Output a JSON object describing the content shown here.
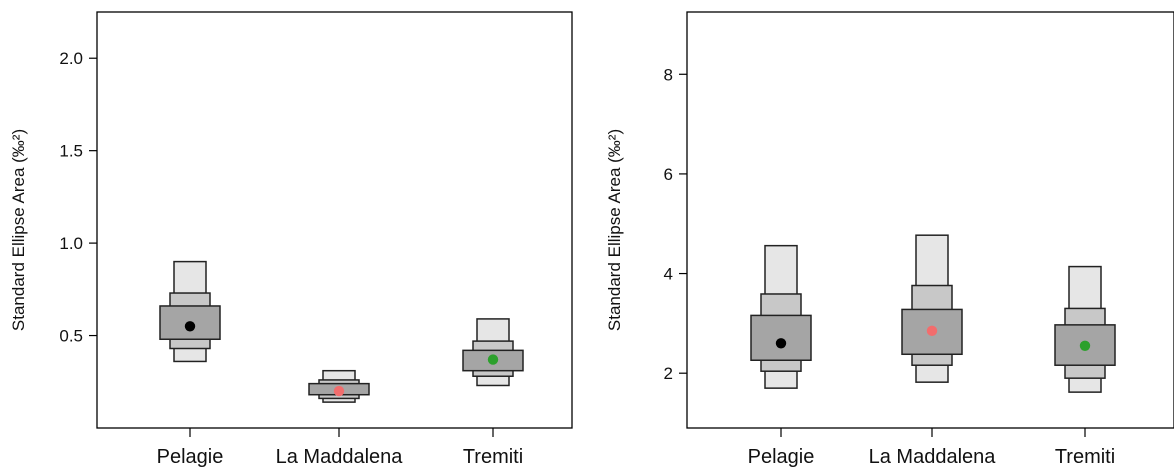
{
  "chart_data": [
    {
      "type": "box",
      "ylabel": "Standard Ellipse Area (‰²)",
      "categories": [
        "Pelagie",
        "La Maddalena",
        "Tremiti"
      ],
      "ylim": [
        0.0,
        2.25
      ],
      "yticks": [
        "0.5",
        "1.0",
        "1.5",
        "2.0"
      ],
      "series": [
        {
          "mode": 0.55,
          "ci50": [
            0.48,
            0.66
          ],
          "ci75": [
            0.43,
            0.73
          ],
          "ci95": [
            0.36,
            0.9
          ],
          "color": "#000000"
        },
        {
          "mode": 0.2,
          "ci50": [
            0.18,
            0.24
          ],
          "ci75": [
            0.16,
            0.26
          ],
          "ci95": [
            0.14,
            0.31
          ],
          "color": "#f26d6d"
        },
        {
          "mode": 0.37,
          "ci50": [
            0.31,
            0.42
          ],
          "ci75": [
            0.28,
            0.47
          ],
          "ci95": [
            0.23,
            0.59
          ],
          "color": "#2ca02c"
        }
      ]
    },
    {
      "type": "box",
      "ylabel": "Standard Ellipse Area (‰²)",
      "categories": [
        "Pelagie",
        "La Maddalena",
        "Tremiti"
      ],
      "ylim": [
        0.9,
        9.25
      ],
      "yticks": [
        "2",
        "4",
        "6",
        "8"
      ],
      "series": [
        {
          "mode": 2.6,
          "ci50": [
            2.26,
            3.16
          ],
          "ci75": [
            2.04,
            3.59
          ],
          "ci95": [
            1.7,
            4.56
          ],
          "color": "#000000"
        },
        {
          "mode": 2.85,
          "ci50": [
            2.38,
            3.28
          ],
          "ci75": [
            2.16,
            3.76
          ],
          "ci95": [
            1.82,
            4.77
          ],
          "color": "#f26d6d"
        },
        {
          "mode": 2.55,
          "ci50": [
            2.16,
            2.97
          ],
          "ci75": [
            1.9,
            3.3
          ],
          "ci95": [
            1.62,
            4.14
          ],
          "color": "#2ca02c"
        }
      ]
    }
  ]
}
